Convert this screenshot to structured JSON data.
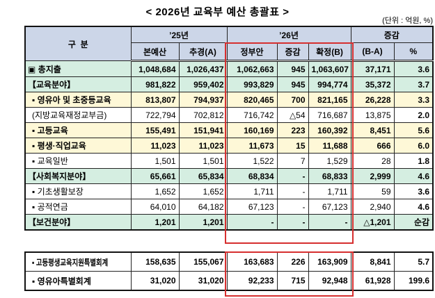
{
  "title": "< 2026년 교육부 예산 총괄표 >",
  "unit_note": "(단위 : 억원, %)",
  "colors": {
    "header_bg": "#CCD6E8",
    "row_green": "#D5EEE1",
    "row_yellow": "#FEF8D7",
    "highlight_red": "#D62E2E"
  },
  "table": {
    "header": {
      "group_col": "구  분",
      "y25": "’25년",
      "y26": "’26년",
      "change_group": "증감",
      "subheaders": [
        "본예산",
        "추경(A)",
        "정부안",
        "증감",
        "확정(B)",
        "(B-A)",
        "%"
      ]
    },
    "rows": [
      {
        "label": "▣ 총지출",
        "indent": 0,
        "bg": "green",
        "bold": true,
        "values": [
          "1,048,684",
          "1,026,437",
          "1,062,663",
          "945",
          "1,063,607",
          "37,171",
          "3.6"
        ]
      },
      {
        "label": "【교육분야】",
        "indent": 0,
        "bg": "green",
        "bold": true,
        "values": [
          "981,822",
          "959,402",
          "993,829",
          "945",
          "994,774",
          "35,372",
          "3.7"
        ]
      },
      {
        "label": "▪ 영유아 및 초중등교육",
        "indent": 1,
        "bg": "yellow",
        "bold": true,
        "values": [
          "813,807",
          "794,937",
          "820,465",
          "700",
          "821,165",
          "26,228",
          "3.3"
        ]
      },
      {
        "label": "(지방교육재정교부금)",
        "indent": 1,
        "bg": "white",
        "bold": false,
        "values": [
          "722,794",
          "702,812",
          "716,742",
          "△54",
          "716,687",
          "13,875",
          "2.0"
        ]
      },
      {
        "label": "▪ 고등교육",
        "indent": 1,
        "bg": "yellow",
        "bold": true,
        "values": [
          "155,491",
          "151,941",
          "160,169",
          "223",
          "160,392",
          "8,451",
          "5.6"
        ]
      },
      {
        "label": "▪ 평생·직업교육",
        "indent": 1,
        "bg": "yellow",
        "bold": true,
        "values": [
          "11,023",
          "11,023",
          "11,673",
          "15",
          "11,688",
          "666",
          "6.0"
        ]
      },
      {
        "label": "▪ 교육일반",
        "indent": 1,
        "bg": "white",
        "bold": false,
        "values": [
          "1,501",
          "1,501",
          "1,522",
          "7",
          "1,529",
          "28",
          "1.8"
        ]
      },
      {
        "label": "【사회복지분야】",
        "indent": 0,
        "bg": "green",
        "bold": true,
        "values": [
          "65,661",
          "65,834",
          "68,834",
          "-",
          "68,833",
          "2,999",
          "4.6"
        ]
      },
      {
        "label": "▪ 기초생활보장",
        "indent": 1,
        "bg": "white",
        "bold": false,
        "values": [
          "1,652",
          "1,652",
          "1,711",
          "-",
          "1,711",
          "59",
          "3.6"
        ]
      },
      {
        "label": "▪ 공적연금",
        "indent": 1,
        "bg": "white",
        "bold": false,
        "values": [
          "64,010",
          "64,182",
          "67,123",
          "-",
          "67,123",
          "2,940",
          "4.6"
        ]
      },
      {
        "label": "【보건분야】",
        "indent": 0,
        "bg": "green",
        "bold": true,
        "values": [
          "1,201",
          "1,201",
          "-",
          "-",
          "-",
          "△1,201",
          "순감"
        ]
      }
    ],
    "footer_rows": [
      {
        "label": "▪ 고등평생교육지원특별회계",
        "indent": 1,
        "bg": "white",
        "bold": true,
        "condensed": true,
        "values": [
          "158,635",
          "155,067",
          "163,683",
          "226",
          "163,909",
          "8,841",
          "5.7"
        ]
      },
      {
        "label": "▪  영유아특별회계",
        "indent": 1,
        "bg": "white",
        "bold": true,
        "values": [
          "31,020",
          "31,020",
          "92,233",
          "715",
          "92,948",
          "61,928",
          "199.6"
        ]
      }
    ]
  }
}
